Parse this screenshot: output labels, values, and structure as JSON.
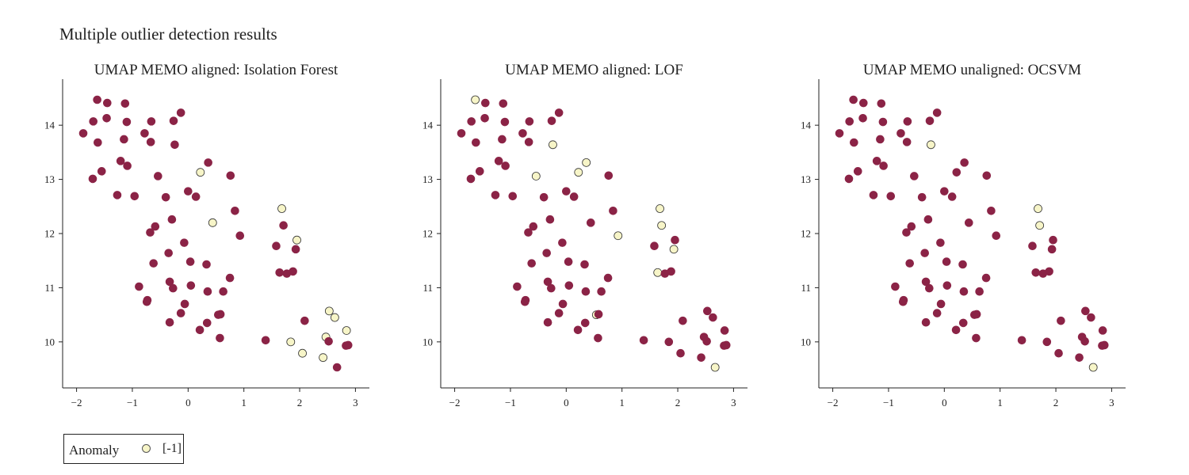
{
  "title": "Multiple outlier detection results",
  "colors": {
    "normal": "#8b2346",
    "anomaly": "#f7f5c8",
    "edge": "#333333"
  },
  "legend": {
    "title": "Anomaly",
    "label": "[-1]"
  },
  "chart_data": [
    {
      "type": "scatter",
      "title": "UMAP MEMO aligned: Isolation Forest",
      "xlim": [
        -2.25,
        3.25
      ],
      "ylim": [
        9.15,
        14.85
      ],
      "xticks": [
        -2,
        -1,
        0,
        1,
        2,
        3
      ],
      "yticks": [
        10,
        11,
        12,
        13,
        14
      ],
      "anomaly_indices": [
        16,
        19,
        35,
        36,
        50,
        51,
        52,
        53,
        54,
        55,
        56
      ],
      "legend_entry": "[-1]"
    },
    {
      "type": "scatter",
      "title": "UMAP MEMO aligned: LOF",
      "xlim": [
        -2.25,
        3.25
      ],
      "ylim": [
        9.15,
        14.85
      ],
      "xticks": [
        -2,
        -1,
        0,
        1,
        2,
        3
      ],
      "yticks": [
        10,
        11,
        12,
        13,
        14
      ],
      "anomaly_indices": [
        3,
        16,
        17,
        18,
        22,
        33,
        35,
        37,
        38,
        41,
        49,
        71
      ],
      "legend_entry": "[-1]"
    },
    {
      "type": "scatter",
      "title": "UMAP MEMO unaligned: OCSVM",
      "xlim": [
        -2.25,
        3.25
      ],
      "ylim": [
        9.15,
        14.85
      ],
      "xticks": [
        -2,
        -1,
        0,
        1,
        2,
        3
      ],
      "yticks": [
        10,
        11,
        12,
        13,
        14
      ],
      "anomaly_indices": [
        22,
        35,
        37,
        71
      ],
      "legend_entry": "[-1]"
    }
  ],
  "points": [
    [
      -1.88,
      13.85
    ],
    [
      -1.7,
      14.07
    ],
    [
      -1.62,
      13.68
    ],
    [
      -1.63,
      14.47
    ],
    [
      -1.45,
      14.41
    ],
    [
      -1.46,
      14.13
    ],
    [
      -1.55,
      13.15
    ],
    [
      -1.71,
      13.01
    ],
    [
      -1.21,
      13.34
    ],
    [
      -1.13,
      14.4
    ],
    [
      -1.1,
      14.06
    ],
    [
      -1.15,
      13.74
    ],
    [
      -1.09,
      13.25
    ],
    [
      -0.78,
      13.85
    ],
    [
      -0.66,
      14.07
    ],
    [
      -0.67,
      13.69
    ],
    [
      0.22,
      13.13
    ],
    [
      0.36,
      13.31
    ],
    [
      -0.54,
      13.06
    ],
    [
      0.44,
      12.2
    ],
    [
      -0.13,
      14.23
    ],
    [
      -0.26,
      14.08
    ],
    [
      -0.24,
      13.64
    ],
    [
      0.76,
      13.07
    ],
    [
      -1.27,
      12.71
    ],
    [
      -0.96,
      12.69
    ],
    [
      -0.4,
      12.67
    ],
    [
      -0.29,
      12.26
    ],
    [
      0.0,
      12.78
    ],
    [
      0.14,
      12.68
    ],
    [
      -0.59,
      12.13
    ],
    [
      -0.68,
      12.02
    ],
    [
      0.84,
      12.42
    ],
    [
      0.93,
      11.96
    ],
    [
      -0.07,
      11.83
    ],
    [
      1.68,
      12.46
    ],
    [
      1.95,
      11.88
    ],
    [
      1.71,
      12.15
    ],
    [
      1.93,
      11.71
    ],
    [
      1.58,
      11.77
    ],
    [
      -0.35,
      11.64
    ],
    [
      1.64,
      11.28
    ],
    [
      1.77,
      11.26
    ],
    [
      1.88,
      11.3
    ],
    [
      -0.62,
      11.45
    ],
    [
      0.04,
      11.48
    ],
    [
      0.33,
      11.43
    ],
    [
      0.75,
      11.18
    ],
    [
      -0.33,
      11.11
    ],
    [
      0.54,
      10.5
    ],
    [
      2.53,
      10.57
    ],
    [
      2.63,
      10.45
    ],
    [
      2.84,
      10.21
    ],
    [
      2.47,
      10.09
    ],
    [
      1.84,
      10.0
    ],
    [
      2.05,
      9.79
    ],
    [
      2.42,
      9.71
    ],
    [
      -0.88,
      11.02
    ],
    [
      0.05,
      11.04
    ],
    [
      0.35,
      10.93
    ],
    [
      0.63,
      10.93
    ],
    [
      -0.27,
      10.99
    ],
    [
      -0.73,
      10.77
    ],
    [
      -0.74,
      10.74
    ],
    [
      -0.06,
      10.7
    ],
    [
      0.58,
      10.51
    ],
    [
      -0.13,
      10.53
    ],
    [
      0.34,
      10.35
    ],
    [
      -0.33,
      10.36
    ],
    [
      0.21,
      10.22
    ],
    [
      0.57,
      10.07
    ],
    [
      2.67,
      9.53
    ],
    [
      2.52,
      10.01
    ],
    [
      2.83,
      9.93
    ],
    [
      2.87,
      9.94
    ],
    [
      2.09,
      10.39
    ],
    [
      1.39,
      10.03
    ]
  ]
}
